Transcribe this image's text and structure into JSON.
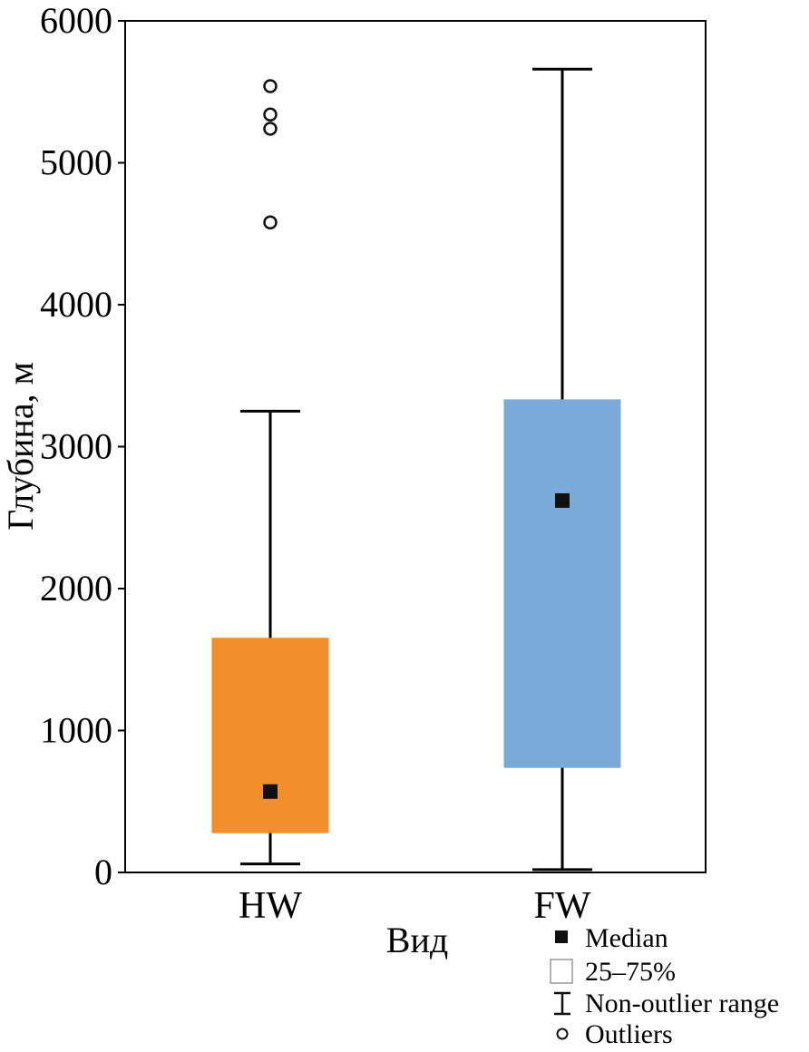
{
  "chart_data": {
    "type": "boxplot",
    "xlabel": "Вид",
    "ylabel": "Глубина, м",
    "ylim": [
      0,
      6000
    ],
    "yticks": [
      0,
      1000,
      2000,
      3000,
      4000,
      5000,
      6000
    ],
    "grid": false,
    "legend_position": "bottom-right, outside plot",
    "categories": [
      "HW",
      "FW"
    ],
    "boxes": [
      {
        "category": "HW",
        "color": "#f28e2b",
        "q1": 280,
        "q3": 1650,
        "median": 570,
        "whisker_low": 60,
        "whisker_high": 3250,
        "outliers": [
          4580,
          5240,
          5340,
          5540
        ]
      },
      {
        "category": "FW",
        "color": "#79aad8",
        "q1": 740,
        "q3": 3330,
        "median": 2620,
        "whisker_low": 20,
        "whisker_high": 5660,
        "outliers": []
      }
    ],
    "legend": {
      "median": "Median",
      "box": "25–75%",
      "range": "Non-outlier range",
      "outliers": "Outliers"
    }
  }
}
